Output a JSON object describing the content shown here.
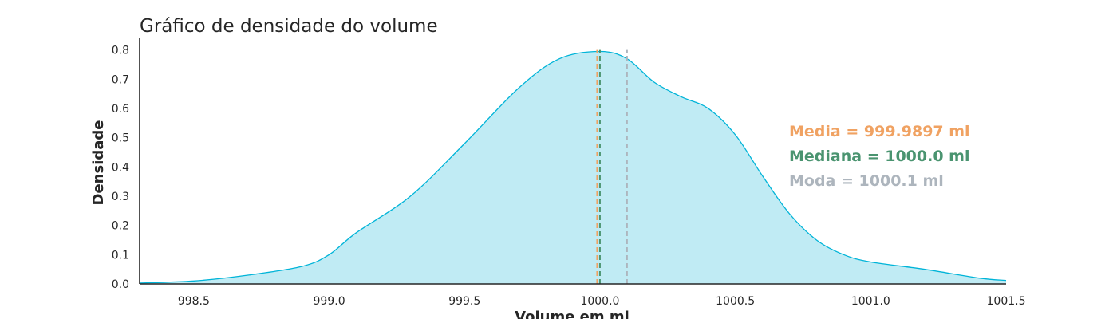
{
  "chart_data": {
    "type": "area",
    "title": "Gráfico de densidade do volume",
    "xlabel": "Volume em ml",
    "ylabel": "Densidade",
    "xlim": [
      998.3,
      1001.5
    ],
    "ylim": [
      0,
      0.84
    ],
    "xticks": [
      "998.5",
      "999.0",
      "999.5",
      "1000.0",
      "1000.5",
      "1001.0",
      "1001.5"
    ],
    "yticks": [
      "0.0",
      "0.1",
      "0.2",
      "0.3",
      "0.4",
      "0.5",
      "0.6",
      "0.7",
      "0.8"
    ],
    "grid": false,
    "series": [
      {
        "kind": "density",
        "color": "#00b4d8",
        "fill": "#c0ebf4",
        "x": [
          998.3,
          998.5,
          998.7,
          998.9,
          999.0,
          999.1,
          999.3,
          999.5,
          999.7,
          999.85,
          1000.0,
          1000.1,
          1000.2,
          1000.3,
          1000.4,
          1000.5,
          1000.6,
          1000.7,
          1000.8,
          1000.9,
          1001.0,
          1001.2,
          1001.4,
          1001.5
        ],
        "y": [
          0.003,
          0.01,
          0.03,
          0.06,
          0.1,
          0.175,
          0.3,
          0.48,
          0.67,
          0.77,
          0.795,
          0.77,
          0.69,
          0.64,
          0.6,
          0.51,
          0.37,
          0.24,
          0.15,
          0.1,
          0.075,
          0.05,
          0.02,
          0.012
        ]
      }
    ],
    "vlines": [
      {
        "name": "Media",
        "x": 999.9897,
        "color": "#f0a262"
      },
      {
        "name": "Mediana",
        "x": 1000.0,
        "color": "#4a9470"
      },
      {
        "name": "Moda",
        "x": 1000.1,
        "color": "#adb5bd"
      }
    ],
    "annotations": [
      {
        "text": "Media = 999.9897 ml",
        "color": "#f0a262"
      },
      {
        "text": "Mediana = 1000.0 ml",
        "color": "#4a9470"
      },
      {
        "text": "Moda = 1000.1 ml",
        "color": "#adb5bd"
      }
    ]
  }
}
